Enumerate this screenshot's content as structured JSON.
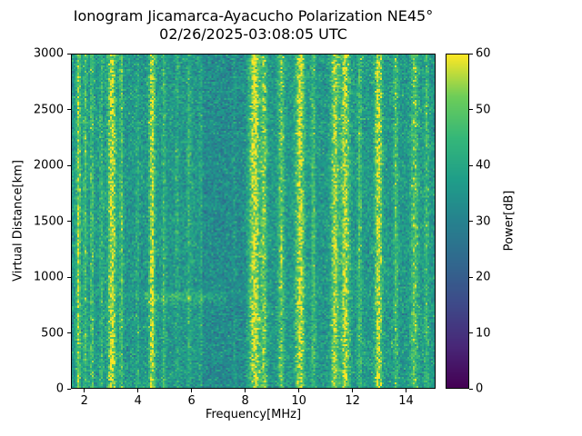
{
  "chart_data": {
    "type": "heatmap",
    "title": "Ionogram Jicamarca-Ayacucho Polarization NE45°",
    "subtitle": "02/26/2025-03:08:05 UTC",
    "xlabel": "Frequency[MHz]",
    "ylabel": "Virtual Distance[km]",
    "colorbar_label": "Power[dB]",
    "colormap": "viridis",
    "x_range": [
      1.5,
      15.1
    ],
    "y_range": [
      0,
      3000
    ],
    "value_range": [
      0,
      60
    ],
    "x_ticks": [
      2,
      4,
      6,
      8,
      10,
      12,
      14
    ],
    "y_ticks": [
      0,
      500,
      1000,
      1500,
      2000,
      2500,
      3000
    ],
    "colorbar_ticks": [
      0,
      10,
      20,
      30,
      40,
      50,
      60
    ],
    "legend_position": "right-colorbar",
    "grid": false,
    "background_noise": {
      "mean_db": 36,
      "std_db": 4.5
    },
    "quiet_zone": {
      "freq_range": [
        6.4,
        8.05
      ],
      "mean_db": 32.5
    },
    "echo_trace": {
      "freq_range": [
        4.2,
        7.3
      ],
      "virtual_distance_km": 820,
      "spread_km": 30,
      "boost_db": 9
    },
    "interference_bands": [
      {
        "center_mhz": 1.75,
        "sigma_mhz": 0.06,
        "boost_db": 18
      },
      {
        "center_mhz": 2.0,
        "sigma_mhz": 0.05,
        "boost_db": 12
      },
      {
        "center_mhz": 2.25,
        "sigma_mhz": 0.05,
        "boost_db": 12
      },
      {
        "center_mhz": 2.6,
        "sigma_mhz": 0.05,
        "boost_db": 8
      },
      {
        "center_mhz": 3.0,
        "sigma_mhz": 0.11,
        "boost_db": 22
      },
      {
        "center_mhz": 3.35,
        "sigma_mhz": 0.05,
        "boost_db": 13
      },
      {
        "center_mhz": 3.95,
        "sigma_mhz": 0.04,
        "boost_db": 7
      },
      {
        "center_mhz": 4.5,
        "sigma_mhz": 0.08,
        "boost_db": 22
      },
      {
        "center_mhz": 4.95,
        "sigma_mhz": 0.05,
        "boost_db": 10
      },
      {
        "center_mhz": 5.45,
        "sigma_mhz": 0.04,
        "boost_db": 6
      },
      {
        "center_mhz": 5.9,
        "sigma_mhz": 0.05,
        "boost_db": 8
      },
      {
        "center_mhz": 6.35,
        "sigma_mhz": 0.04,
        "boost_db": 5
      },
      {
        "center_mhz": 7.6,
        "sigma_mhz": 0.04,
        "boost_db": 4
      },
      {
        "center_mhz": 8.35,
        "sigma_mhz": 0.13,
        "boost_db": 24
      },
      {
        "center_mhz": 8.7,
        "sigma_mhz": 0.08,
        "boost_db": 16
      },
      {
        "center_mhz": 9.35,
        "sigma_mhz": 0.08,
        "boost_db": 15
      },
      {
        "center_mhz": 10.05,
        "sigma_mhz": 0.12,
        "boost_db": 22
      },
      {
        "center_mhz": 10.55,
        "sigma_mhz": 0.06,
        "boost_db": 11
      },
      {
        "center_mhz": 11.35,
        "sigma_mhz": 0.1,
        "boost_db": 20
      },
      {
        "center_mhz": 11.75,
        "sigma_mhz": 0.12,
        "boost_db": 22
      },
      {
        "center_mhz": 12.3,
        "sigma_mhz": 0.06,
        "boost_db": 11
      },
      {
        "center_mhz": 13.0,
        "sigma_mhz": 0.1,
        "boost_db": 22
      },
      {
        "center_mhz": 13.65,
        "sigma_mhz": 0.06,
        "boost_db": 12
      },
      {
        "center_mhz": 14.35,
        "sigma_mhz": 0.1,
        "boost_db": 14
      },
      {
        "center_mhz": 14.8,
        "sigma_mhz": 0.06,
        "boost_db": 10
      }
    ],
    "viridis_stops": [
      [
        0.0,
        68,
        1,
        84
      ],
      [
        0.125,
        72,
        40,
        120
      ],
      [
        0.25,
        62,
        74,
        137
      ],
      [
        0.375,
        49,
        104,
        142
      ],
      [
        0.5,
        38,
        130,
        142
      ],
      [
        0.625,
        31,
        158,
        137
      ],
      [
        0.75,
        53,
        183,
        121
      ],
      [
        0.875,
        109,
        205,
        89
      ],
      [
        1.0,
        253,
        231,
        37
      ]
    ]
  }
}
